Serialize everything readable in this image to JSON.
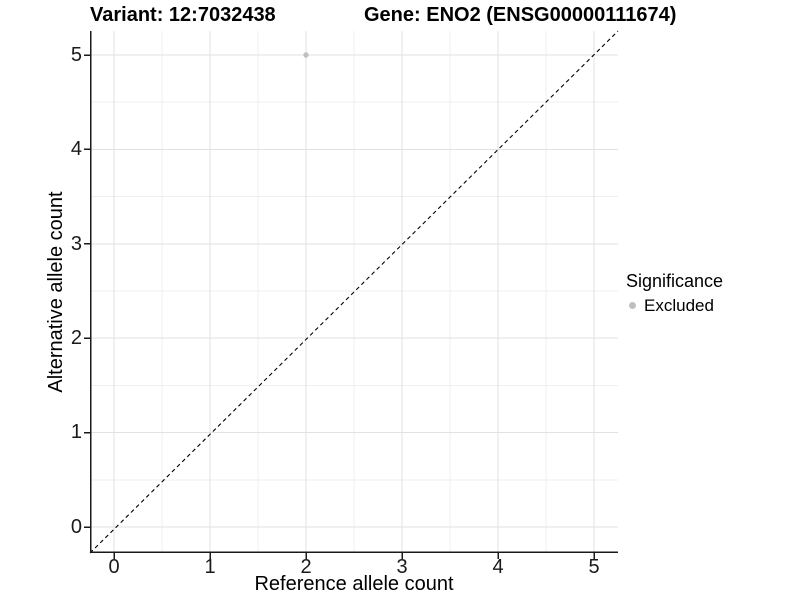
{
  "title": {
    "variant": "Variant: 12:7032438",
    "gene": "Gene: ENO2 (ENSG00000111674)"
  },
  "x_axis": {
    "label": "Reference allele count",
    "ticks": [
      "0",
      "1",
      "2",
      "3",
      "4",
      "5"
    ]
  },
  "y_axis": {
    "label": "Alternative allele count",
    "ticks": [
      "0",
      "1",
      "2",
      "3",
      "4",
      "5"
    ]
  },
  "legend": {
    "title": "Significance",
    "items": [
      {
        "label": "Excluded",
        "marker": "circle",
        "marker_color": "#bfbfbf"
      }
    ]
  },
  "colors": {
    "point_excluded": "#bfbfbf",
    "grid_major": "#e2e2e2",
    "grid_minor": "#efefef",
    "axis_line": "#1a1a1a",
    "reference_line": "#000000",
    "background": "#ffffff"
  },
  "chart_data": {
    "type": "scatter",
    "title": "Variant: 12:7032438   Gene: ENO2 (ENSG00000111674)",
    "xlabel": "Reference allele count",
    "ylabel": "Alternative allele count",
    "xlim": [
      -0.25,
      5.25
    ],
    "ylim": [
      -0.25,
      5.25
    ],
    "x_ticks": [
      0,
      1,
      2,
      3,
      4,
      5
    ],
    "y_ticks": [
      0,
      1,
      2,
      3,
      4,
      5
    ],
    "grid": {
      "major": true,
      "minor": true,
      "minor_interval": 0.5
    },
    "legend_position": "right",
    "series": [
      {
        "name": "Excluded",
        "type": "scatter",
        "color": "#bfbfbf",
        "points": [
          [
            2,
            5
          ]
        ]
      }
    ],
    "annotations": [
      {
        "type": "reference-line",
        "equation": "y = x",
        "style": "dashed",
        "color": "#000000",
        "from": [
          -0.25,
          -0.25
        ],
        "to": [
          5.25,
          5.25
        ]
      }
    ]
  }
}
